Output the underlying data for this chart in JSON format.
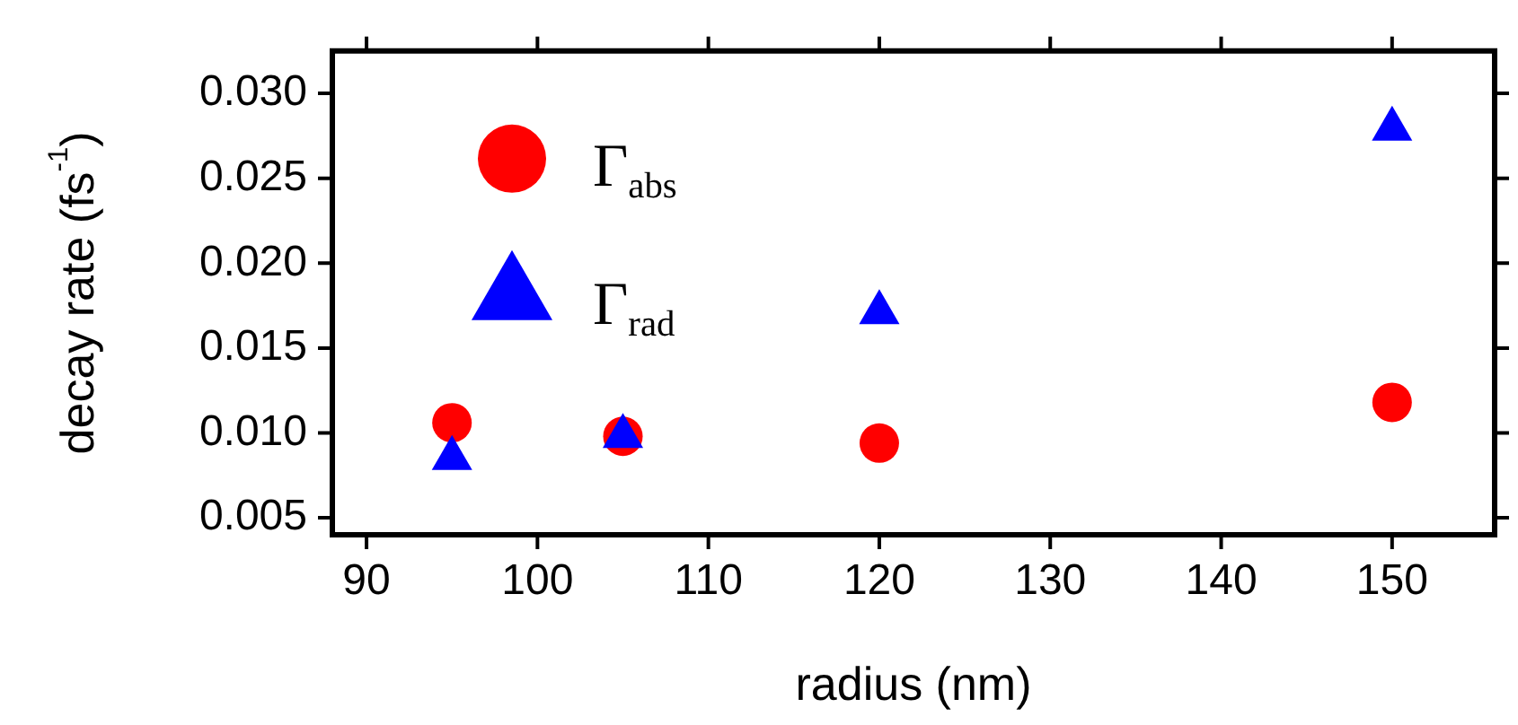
{
  "chart_data": {
    "type": "scatter",
    "xlabel": "radius (nm)",
    "ylabel": "decay rate (fs$^{-1}$)",
    "x": [
      95,
      105,
      120,
      150
    ],
    "series": [
      {
        "name": "Γ$_{abs}$",
        "color": "#ff0000",
        "marker": "circle",
        "values": [
          0.0106,
          0.0098,
          0.0094,
          0.0118
        ]
      },
      {
        "name": "Γ$_{rad}$",
        "color": "#0000ff",
        "marker": "triangle",
        "values": [
          0.0085,
          0.0098,
          0.0171,
          0.0279
        ]
      }
    ],
    "xlim": [
      88,
      156
    ],
    "xticks": [
      90,
      100,
      110,
      120,
      130,
      140,
      150
    ],
    "ylim": [
      0.004,
      0.0325
    ],
    "yticks": [
      0.005,
      {
        "value": 0.01,
        "label": "0.010"
      },
      0.015,
      {
        "value": 0.02,
        "label": "0.020"
      },
      0.025,
      {
        "value": 0.03,
        "label": "0.030"
      }
    ],
    "grid": false,
    "legend": "top left"
  }
}
